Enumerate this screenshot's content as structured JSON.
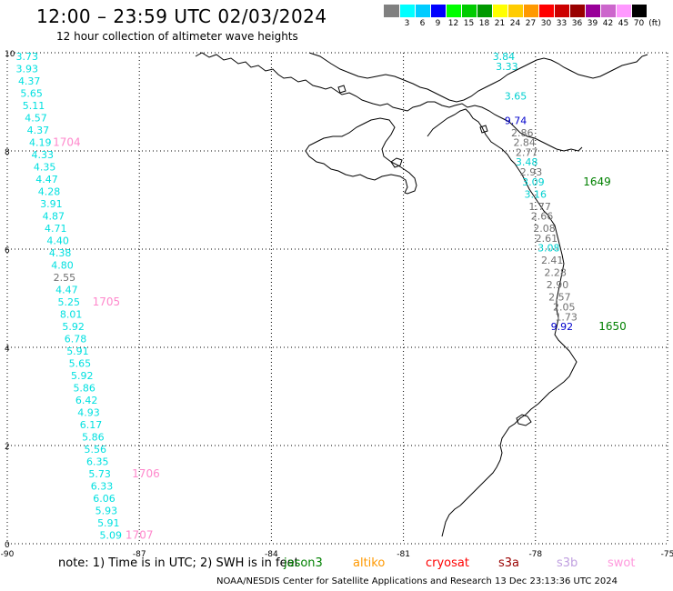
{
  "header": {
    "title": "12:00 – 23:59 UTC 02/03/2024",
    "subtitle": "12 hour collection of altimeter wave heights"
  },
  "scale": {
    "unit": "(ft)",
    "colors": [
      "#808080",
      "#00ffff",
      "#00ccff",
      "#0000ff",
      "#00ff00",
      "#00cc00",
      "#009900",
      "#ffff00",
      "#ffcc00",
      "#ff9900",
      "#ff0000",
      "#cc0000",
      "#990000",
      "#990099",
      "#cc66cc",
      "#ff99ff",
      "#000000"
    ],
    "labels": [
      "",
      "3",
      "6",
      "9",
      "12",
      "15",
      "18",
      "21",
      "24",
      "27",
      "30",
      "33",
      "36",
      "39",
      "42",
      "45",
      "70"
    ]
  },
  "map": {
    "x_ticks": [
      "-90",
      "-87",
      "-84",
      "-81",
      "-78",
      "-75"
    ],
    "y_ticks": [
      "0",
      "2",
      "4",
      "6",
      "8",
      "10"
    ],
    "x_range": [
      -90,
      -75
    ],
    "y_range": [
      0,
      10
    ],
    "west_track": {
      "color": "#00e0e0",
      "readings": [
        {
          "lon": -89.55,
          "lat": 9.85,
          "v": "3.73"
        },
        {
          "lon": -89.55,
          "lat": 9.6,
          "v": "3.93"
        },
        {
          "lon": -89.5,
          "lat": 9.35,
          "v": "4.37"
        },
        {
          "lon": -89.45,
          "lat": 9.1,
          "v": "5.65"
        },
        {
          "lon": -89.4,
          "lat": 8.85,
          "v": "5.11"
        },
        {
          "lon": -89.35,
          "lat": 8.6,
          "v": "4.57"
        },
        {
          "lon": -89.3,
          "lat": 8.35,
          "v": "4.37"
        },
        {
          "lon": -89.25,
          "lat": 8.1,
          "v": "4.19"
        },
        {
          "lon": -89.2,
          "lat": 7.85,
          "v": "4.33"
        },
        {
          "lon": -89.15,
          "lat": 7.6,
          "v": "4.35"
        },
        {
          "lon": -89.1,
          "lat": 7.35,
          "v": "4.47"
        },
        {
          "lon": -89.05,
          "lat": 7.1,
          "v": "4.28"
        },
        {
          "lon": -89.0,
          "lat": 6.85,
          "v": "3.91"
        },
        {
          "lon": -88.95,
          "lat": 6.6,
          "v": "4.87"
        },
        {
          "lon": -88.9,
          "lat": 6.35,
          "v": "4.71"
        },
        {
          "lon": -88.85,
          "lat": 6.1,
          "v": "4.40"
        },
        {
          "lon": -88.8,
          "lat": 5.85,
          "v": "4.38"
        },
        {
          "lon": -88.75,
          "lat": 5.6,
          "v": "4.80"
        },
        {
          "lon": -88.7,
          "lat": 5.35,
          "v": "2.55",
          "c": "#707070"
        },
        {
          "lon": -88.65,
          "lat": 5.1,
          "v": "4.47"
        },
        {
          "lon": -88.6,
          "lat": 4.85,
          "v": "5.25"
        },
        {
          "lon": -88.55,
          "lat": 4.6,
          "v": "8.01"
        },
        {
          "lon": -88.5,
          "lat": 4.35,
          "v": "5.92"
        },
        {
          "lon": -88.45,
          "lat": 4.1,
          "v": "6.78"
        },
        {
          "lon": -88.4,
          "lat": 3.85,
          "v": "5.91"
        },
        {
          "lon": -88.35,
          "lat": 3.6,
          "v": "5.65"
        },
        {
          "lon": -88.3,
          "lat": 3.35,
          "v": "5.92"
        },
        {
          "lon": -88.25,
          "lat": 3.1,
          "v": "5.86"
        },
        {
          "lon": -88.2,
          "lat": 2.85,
          "v": "6.42"
        },
        {
          "lon": -88.15,
          "lat": 2.6,
          "v": "4.93"
        },
        {
          "lon": -88.1,
          "lat": 2.35,
          "v": "6.17"
        },
        {
          "lon": -88.05,
          "lat": 2.1,
          "v": "5.86"
        },
        {
          "lon": -88.0,
          "lat": 1.85,
          "v": "5.56"
        },
        {
          "lon": -87.95,
          "lat": 1.6,
          "v": "6.35"
        },
        {
          "lon": -87.9,
          "lat": 1.35,
          "v": "5.73"
        },
        {
          "lon": -87.85,
          "lat": 1.1,
          "v": "6.33"
        },
        {
          "lon": -87.8,
          "lat": 0.85,
          "v": "6.06"
        },
        {
          "lon": -87.75,
          "lat": 0.6,
          "v": "5.93"
        },
        {
          "lon": -87.7,
          "lat": 0.35,
          "v": "5.91"
        },
        {
          "lon": -87.65,
          "lat": 0.1,
          "v": "5.09"
        }
      ],
      "times": [
        {
          "lon": -88.65,
          "lat": 8.1,
          "v": "1704"
        },
        {
          "lon": -87.75,
          "lat": 4.85,
          "v": "1705"
        },
        {
          "lon": -86.85,
          "lat": 1.35,
          "v": "1706"
        },
        {
          "lon": -87.0,
          "lat": 0.1,
          "v": "1707"
        }
      ]
    },
    "east_track": {
      "readings": [
        {
          "lon": -78.72,
          "lat": 9.85,
          "v": "3.84",
          "c": "#00d0d0"
        },
        {
          "lon": -78.65,
          "lat": 9.65,
          "v": "3.33",
          "c": "#00d0d0"
        },
        {
          "lon": -78.45,
          "lat": 9.05,
          "v": "3.65",
          "c": "#00d0d0"
        },
        {
          "lon": -78.45,
          "lat": 8.55,
          "v": "9.74",
          "c": "#0000cc"
        },
        {
          "lon": -78.3,
          "lat": 8.3,
          "v": "2.86",
          "c": "#707070"
        },
        {
          "lon": -78.25,
          "lat": 8.1,
          "v": "2.84",
          "c": "#707070"
        },
        {
          "lon": -78.2,
          "lat": 7.9,
          "v": "2.77",
          "c": "#707070"
        },
        {
          "lon": -78.2,
          "lat": 7.7,
          "v": "3.48",
          "c": "#00d0d0"
        },
        {
          "lon": -78.1,
          "lat": 7.5,
          "v": "2.93",
          "c": "#707070"
        },
        {
          "lon": -78.05,
          "lat": 7.3,
          "v": "3.09",
          "c": "#00d0d0"
        },
        {
          "lon": -78.0,
          "lat": 7.05,
          "v": "3.16",
          "c": "#00d0d0"
        },
        {
          "lon": -77.9,
          "lat": 6.8,
          "v": "1.77",
          "c": "#707070"
        },
        {
          "lon": -77.85,
          "lat": 6.6,
          "v": "2.66",
          "c": "#707070"
        },
        {
          "lon": -77.8,
          "lat": 6.35,
          "v": "2.08",
          "c": "#707070"
        },
        {
          "lon": -77.75,
          "lat": 6.15,
          "v": "2.61",
          "c": "#707070"
        },
        {
          "lon": -77.7,
          "lat": 5.95,
          "v": "3.08",
          "c": "#00d0d0"
        },
        {
          "lon": -77.62,
          "lat": 5.7,
          "v": "2.41",
          "c": "#707070"
        },
        {
          "lon": -77.55,
          "lat": 5.45,
          "v": "2.28",
          "c": "#707070"
        },
        {
          "lon": -77.5,
          "lat": 5.2,
          "v": "2.90",
          "c": "#707070"
        },
        {
          "lon": -77.45,
          "lat": 4.95,
          "v": "2.57",
          "c": "#707070"
        },
        {
          "lon": -77.35,
          "lat": 4.75,
          "v": "2.05",
          "c": "#707070"
        },
        {
          "lon": -77.3,
          "lat": 4.55,
          "v": "1.73",
          "c": "#707070"
        },
        {
          "lon": -77.4,
          "lat": 4.35,
          "v": "9.92",
          "c": "#0000cc"
        }
      ],
      "times": [
        {
          "lon": -76.6,
          "lat": 7.3,
          "v": "1649"
        },
        {
          "lon": -76.25,
          "lat": 4.35,
          "v": "1650"
        }
      ],
      "time_color": "#008000"
    }
  },
  "footer": {
    "note": "note:  1) Time is in UTC; 2) SWH is in feet",
    "satellites": [
      {
        "name": "jason3",
        "color": "#008000"
      },
      {
        "name": "altiko",
        "color": "#ff9900"
      },
      {
        "name": "cryosat",
        "color": "#ff0000"
      },
      {
        "name": "s3a",
        "color": "#990000"
      },
      {
        "name": "s3b",
        "color": "#c0a0e0"
      },
      {
        "name": "swot",
        "color": "#ff99dd"
      }
    ],
    "credit": "NOAA/NESDIS Center for Satellite Applications and Research    13 Dec 23:13:36 UTC 2024"
  },
  "colors": {
    "grid": "#000000",
    "coast": "#000000",
    "time_west": "#ff88cc"
  }
}
